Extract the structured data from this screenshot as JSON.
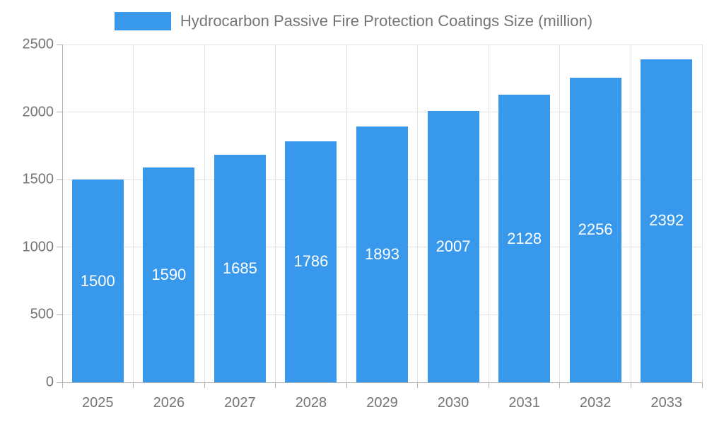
{
  "legend": {
    "label": "Hydrocarbon Passive Fire Protection Coatings Size (million)"
  },
  "chart_data": {
    "type": "bar",
    "title": "Hydrocarbon Passive Fire Protection Coatings Size (million)",
    "categories": [
      "2025",
      "2026",
      "2027",
      "2028",
      "2029",
      "2030",
      "2031",
      "2032",
      "2033"
    ],
    "values": [
      1500,
      1590,
      1685,
      1786,
      1893,
      2007,
      2128,
      2256,
      2392
    ],
    "value_labels": [
      "1500",
      "1590",
      "1685",
      "1786",
      "1893",
      "2007",
      "2128",
      "2256",
      "2392"
    ],
    "xlabel": "",
    "ylabel": "",
    "ylim": [
      0,
      2500
    ],
    "yticks": [
      0,
      500,
      1000,
      1500,
      2000,
      2500
    ],
    "ytick_labels": [
      "0",
      "500",
      "1000",
      "1500",
      "2000",
      "2500"
    ],
    "grid": true,
    "legend_position": "top",
    "colors": {
      "bar": "#3898EC",
      "bar_value_text": "#ffffff",
      "grid": "#e3e3e3",
      "axis": "#b0b0b0",
      "tick_text": "#757575",
      "legend_text": "#757575",
      "background": "#ffffff"
    }
  }
}
